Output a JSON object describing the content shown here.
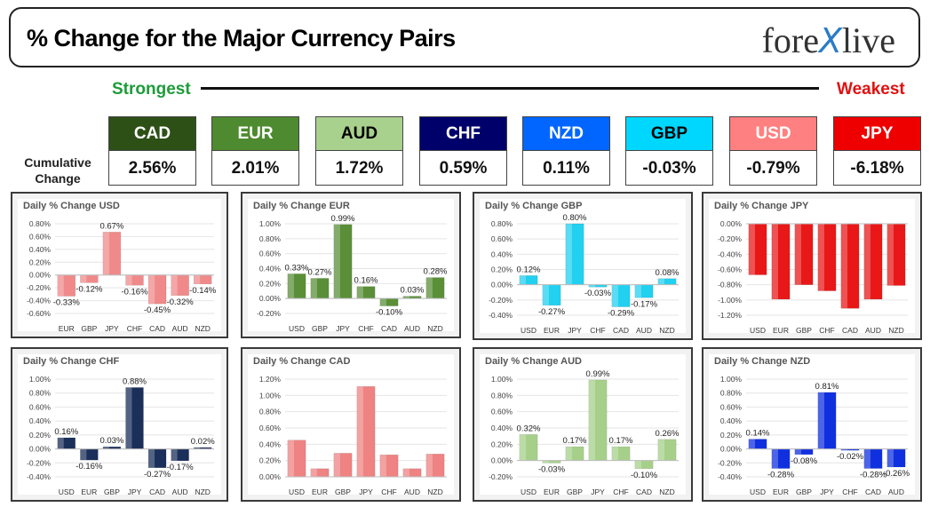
{
  "header": {
    "title": "% Change for the Major Currency Pairs",
    "logo_left": "fore",
    "logo_x": "X",
    "logo_right": "live"
  },
  "scale": {
    "strong_label": "Strongest",
    "weak_label": "Weakest"
  },
  "cumulative": {
    "label_line1": "Cumulative",
    "label_line2": "Change",
    "currencies": [
      {
        "code": "CAD",
        "value": "2.56%",
        "bg": "#2d5016",
        "fg": "#ffffff"
      },
      {
        "code": "EUR",
        "value": "2.01%",
        "bg": "#4e8a2f",
        "fg": "#ffffff"
      },
      {
        "code": "AUD",
        "value": "1.72%",
        "bg": "#a9d18e",
        "fg": "#000000"
      },
      {
        "code": "CHF",
        "value": "0.59%",
        "bg": "#00006b",
        "fg": "#ffffff"
      },
      {
        "code": "NZD",
        "value": "0.11%",
        "bg": "#0066ff",
        "fg": "#ffffff"
      },
      {
        "code": "GBP",
        "value": "-0.03%",
        "bg": "#00d7ff",
        "fg": "#000000"
      },
      {
        "code": "USD",
        "value": "-0.79%",
        "bg": "#ff8080",
        "fg": "#ffffff"
      },
      {
        "code": "JPY",
        "value": "-6.18%",
        "bg": "#ee0000",
        "fg": "#ffffff"
      }
    ]
  },
  "chart_data": [
    {
      "type": "bar",
      "title": "Daily % Change USD",
      "color": "#f08a8a",
      "categories": [
        "EUR",
        "GBP",
        "JPY",
        "CHF",
        "CAD",
        "AUD",
        "NZD"
      ],
      "values": [
        -0.33,
        -0.12,
        0.67,
        -0.16,
        -0.45,
        -0.32,
        -0.14
      ],
      "labels": [
        "-0.33%",
        "-0.12%",
        "0.67%",
        "-0.16%",
        "-0.45%",
        "-0.32%",
        "-0.14%"
      ],
      "yticks": [
        0.8,
        0.6,
        0.4,
        0.2,
        0.0,
        -0.2,
        -0.4,
        -0.6
      ],
      "ytick_labels": [
        "0.80%",
        "0.60%",
        "0.40%",
        "0.20%",
        "0.00%",
        "-0.20%",
        "-0.40%",
        "-0.60%"
      ],
      "ylim": [
        -0.6,
        0.8
      ]
    },
    {
      "type": "bar",
      "title": "Daily % Change EUR",
      "color": "#5a8f38",
      "categories": [
        "USD",
        "GBP",
        "JPY",
        "CHF",
        "CAD",
        "AUD",
        "NZD"
      ],
      "values": [
        0.33,
        0.27,
        0.99,
        0.16,
        -0.1,
        0.03,
        0.28
      ],
      "labels": [
        "0.33%",
        "0.27%",
        "0.99%",
        "0.16%",
        "-0.10%",
        "0.03%",
        "0.28%"
      ],
      "yticks": [
        1.0,
        0.8,
        0.6,
        0.4,
        0.2,
        0.0,
        -0.2
      ],
      "ytick_labels": [
        "1.00%",
        "0.80%",
        "0.60%",
        "0.40%",
        "0.20%",
        "0.00%",
        "-0.20%"
      ],
      "ylim": [
        -0.2,
        1.0
      ]
    },
    {
      "type": "bar",
      "title": "Daily % Change GBP",
      "color": "#22d0f0",
      "categories": [
        "USD",
        "EUR",
        "JPY",
        "CHF",
        "CAD",
        "AUD",
        "NZD"
      ],
      "values": [
        0.12,
        -0.27,
        0.8,
        -0.03,
        -0.29,
        -0.17,
        0.08
      ],
      "labels": [
        "0.12%",
        "-0.27%",
        "0.80%",
        "-0.03%",
        "-0.29%",
        "-0.17%",
        "0.08%"
      ],
      "yticks": [
        0.8,
        0.6,
        0.4,
        0.2,
        0.0,
        -0.2,
        -0.4
      ],
      "ytick_labels": [
        "0.80%",
        "0.60%",
        "0.40%",
        "0.20%",
        "0.00%",
        "-0.20%",
        "-0.40%"
      ],
      "ylim": [
        -0.4,
        0.8
      ]
    },
    {
      "type": "bar",
      "title": "Daily % Change JPY",
      "color": "#e81818",
      "categories": [
        "USD",
        "EUR",
        "GBP",
        "CHF",
        "CAD",
        "AUD",
        "NZD"
      ],
      "values": [
        -0.67,
        -0.99,
        -0.8,
        -0.88,
        -1.11,
        -0.99,
        -0.81
      ],
      "labels": [],
      "yticks": [
        0.0,
        -0.2,
        -0.4,
        -0.6,
        -0.8,
        -1.0,
        -1.2
      ],
      "ytick_labels": [
        "0.00%",
        "-0.20%",
        "-0.40%",
        "-0.60%",
        "-0.80%",
        "-1.00%",
        "-1.20%"
      ],
      "ylim": [
        -1.2,
        0.0
      ]
    },
    {
      "type": "bar",
      "title": "Daily % Change CHF",
      "color": "#1a2f5a",
      "categories": [
        "USD",
        "EUR",
        "GBP",
        "JPY",
        "CAD",
        "AUD",
        "NZD"
      ],
      "values": [
        0.16,
        -0.16,
        0.03,
        0.88,
        -0.27,
        -0.17,
        0.02
      ],
      "labels": [
        "0.16%",
        "-0.16%",
        "0.03%",
        "0.88%",
        "-0.27%",
        "-0.17%",
        "0.02%"
      ],
      "yticks": [
        1.0,
        0.8,
        0.6,
        0.4,
        0.2,
        0.0,
        -0.2,
        -0.4
      ],
      "ytick_labels": [
        "1.00%",
        "0.80%",
        "0.60%",
        "0.40%",
        "0.20%",
        "0.00%",
        "-0.20%",
        "-0.40%"
      ],
      "ylim": [
        -0.4,
        1.0
      ]
    },
    {
      "type": "bar",
      "title": "Daily % Change CAD",
      "color": "#ef8282",
      "categories": [
        "USD",
        "EUR",
        "GBP",
        "JPY",
        "CHF",
        "AUD",
        "NZD"
      ],
      "values": [
        0.45,
        0.1,
        0.29,
        1.11,
        0.27,
        0.1,
        0.28
      ],
      "labels": [],
      "yticks": [
        1.2,
        1.0,
        0.8,
        0.6,
        0.4,
        0.2,
        0.0
      ],
      "ytick_labels": [
        "1.20%",
        "1.00%",
        "0.80%",
        "0.60%",
        "0.40%",
        "0.20%",
        "0.00%"
      ],
      "ylim": [
        0.0,
        1.2
      ]
    },
    {
      "type": "bar",
      "title": "Daily % Change AUD",
      "color": "#a6d08a",
      "categories": [
        "USD",
        "EUR",
        "GBP",
        "JPY",
        "CHF",
        "CAD",
        "NZD"
      ],
      "values": [
        0.32,
        -0.03,
        0.17,
        0.99,
        0.17,
        -0.1,
        0.26
      ],
      "labels": [
        "0.32%",
        "-0.03%",
        "0.17%",
        "0.99%",
        "0.17%",
        "-0.10%",
        "0.26%"
      ],
      "yticks": [
        1.0,
        0.8,
        0.6,
        0.4,
        0.2,
        0.0,
        -0.2
      ],
      "ytick_labels": [
        "1.00%",
        "0.80%",
        "0.60%",
        "0.40%",
        "0.20%",
        "0.00%",
        "-0.20%"
      ],
      "ylim": [
        -0.2,
        1.0
      ]
    },
    {
      "type": "bar",
      "title": "Daily % Change NZD",
      "color": "#1030e0",
      "categories": [
        "USD",
        "EUR",
        "GBP",
        "JPY",
        "CHF",
        "CAD",
        "AUD"
      ],
      "values": [
        0.14,
        -0.28,
        -0.08,
        0.81,
        -0.02,
        -0.28,
        -0.26
      ],
      "labels": [
        "0.14%",
        "-0.28%",
        "-0.08%",
        "0.81%",
        "-0.02%",
        "-0.28%",
        "-0.26%"
      ],
      "yticks": [
        1.0,
        0.8,
        0.6,
        0.4,
        0.2,
        0.0,
        -0.2,
        -0.4
      ],
      "ytick_labels": [
        "1.00%",
        "0.80%",
        "0.60%",
        "0.40%",
        "0.20%",
        "0.00%",
        "-0.20%",
        "-0.40%"
      ],
      "ylim": [
        -0.4,
        1.0
      ]
    }
  ]
}
